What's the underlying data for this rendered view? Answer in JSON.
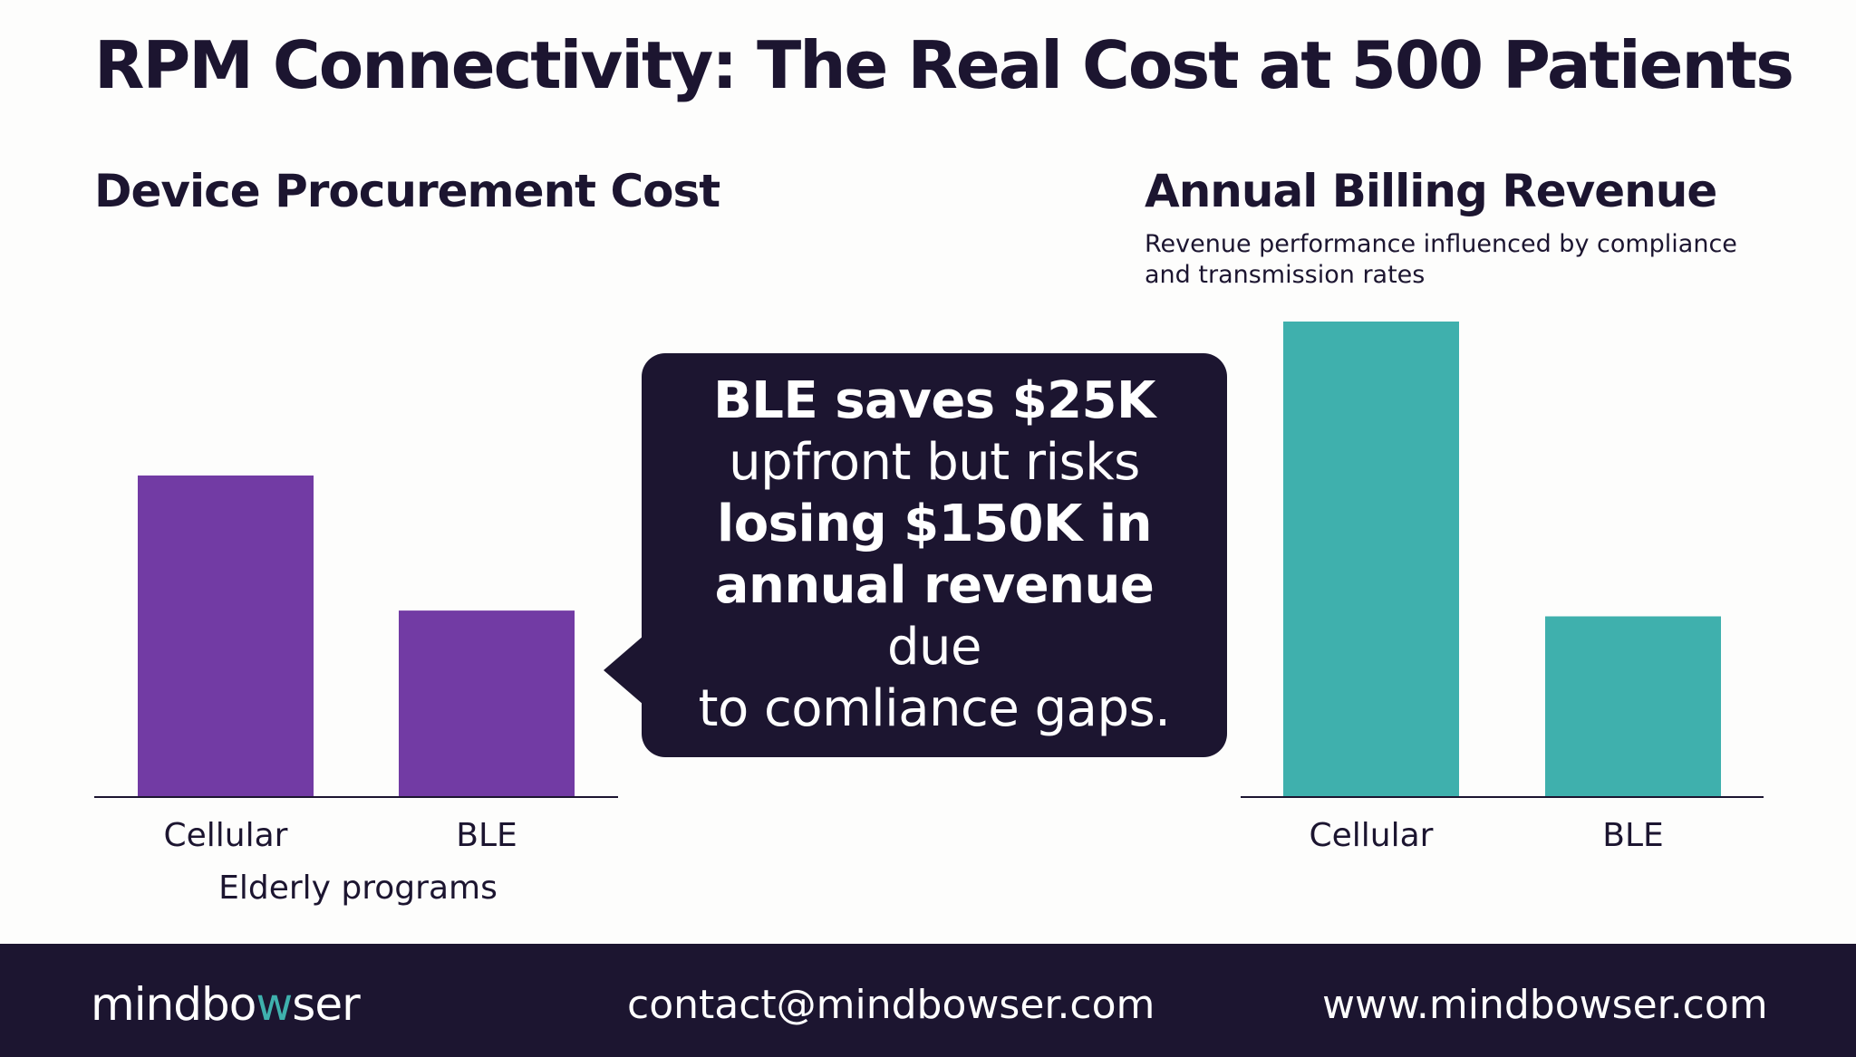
{
  "title": "RPM Connectivity: The Real Cost at 500 Patients",
  "colors": {
    "dark": "#1c1530",
    "purple": "#723ba4",
    "teal": "#3fb0ad",
    "axis": "#1c1530",
    "background": "#fdfdfc"
  },
  "chart_data": [
    {
      "type": "bar",
      "title": "Device Procurement Cost",
      "categories": [
        "Cellular",
        "BLE"
      ],
      "values": [
        100,
        58
      ],
      "xlabel": "Elderly programs",
      "ylabel": "",
      "color": "#723ba4",
      "ylim": [
        0,
        140
      ],
      "grid": false
    },
    {
      "type": "bar",
      "title": "Annual Billing Revenue",
      "subtitle": "Revenue performance influenced by compliance and transmission rates",
      "categories": [
        "Cellular",
        "BLE"
      ],
      "values": [
        100,
        38
      ],
      "xlabel": "",
      "ylabel": "",
      "color": "#3fb0ad",
      "ylim": [
        0,
        100
      ],
      "grid": false
    }
  ],
  "callout": {
    "line1": "BLE saves $25K",
    "line2": "upfront but risks",
    "line3": "losing $150K in",
    "line4_bold": "annual revenue",
    "line4_rest": " due",
    "line5": "to comliance gaps."
  },
  "footer": {
    "logo_part1": "mindbo",
    "logo_accent": "w",
    "logo_part2": "ser",
    "email": "contact@mindbowser.com",
    "website": "www.mindbowser.com"
  }
}
